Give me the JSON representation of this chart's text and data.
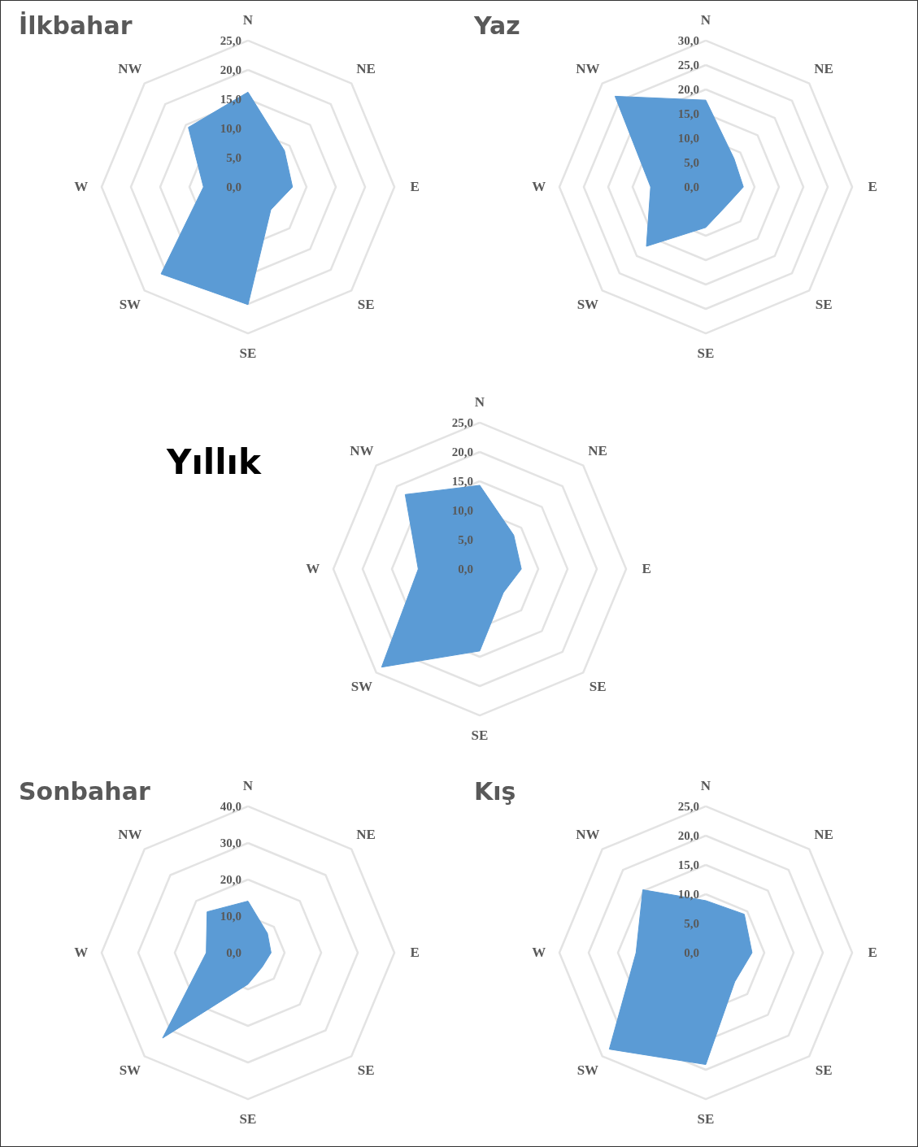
{
  "chart_data": [
    {
      "type": "radar",
      "title": "İlkbahar",
      "categories": [
        "N",
        "NE",
        "E",
        "SE",
        "SE",
        "SW",
        "W",
        "NW"
      ],
      "grid": true,
      "series": [
        {
          "color": "#5b9bd5",
          "values": [
            16.2,
            8.8,
            7.6,
            5.5,
            20.1,
            21.0,
            7.6,
            14.4
          ]
        }
      ],
      "ylim": [
        0,
        25
      ],
      "yticks": [
        {
          "value": 0,
          "label": "0,0"
        },
        {
          "value": 5,
          "label": "5,0"
        },
        {
          "value": 10,
          "label": "10,0"
        },
        {
          "value": 15,
          "label": "15,0"
        },
        {
          "value": 20,
          "label": "20,0"
        },
        {
          "value": 25,
          "label": "25,0"
        }
      ]
    },
    {
      "type": "radar",
      "title": "Yaz",
      "categories": [
        "N",
        "NE",
        "E",
        "SE",
        "SE",
        "SW",
        "W",
        "NW"
      ],
      "grid": true,
      "series": [
        {
          "color": "#5b9bd5",
          "values": [
            17.8,
            8.2,
            7.7,
            5.7,
            8.3,
            17.2,
            11.3,
            26.3
          ]
        }
      ],
      "ylim": [
        0,
        30
      ],
      "yticks": [
        {
          "value": 0,
          "label": "0,0"
        },
        {
          "value": 5,
          "label": "5,0"
        },
        {
          "value": 10,
          "label": "10,0"
        },
        {
          "value": 15,
          "label": "15,0"
        },
        {
          "value": 20,
          "label": "20,0"
        },
        {
          "value": 25,
          "label": "25,0"
        },
        {
          "value": 30,
          "label": "30,0"
        }
      ]
    },
    {
      "type": "radar",
      "title": "Yıllık",
      "categories": [
        "N",
        "NE",
        "E",
        "SE",
        "SE",
        "SW",
        "W",
        "NW"
      ],
      "grid": true,
      "series": [
        {
          "color": "#5b9bd5",
          "values": [
            14.3,
            8.2,
            7.1,
            5.7,
            14.0,
            23.7,
            10.5,
            18.0
          ]
        }
      ],
      "ylim": [
        0,
        25
      ],
      "yticks": [
        {
          "value": 0,
          "label": "0,0"
        },
        {
          "value": 5,
          "label": "5,0"
        },
        {
          "value": 10,
          "label": "10,0"
        },
        {
          "value": 15,
          "label": "15,0"
        },
        {
          "value": 20,
          "label": "20,0"
        },
        {
          "value": 25,
          "label": "25,0"
        }
      ]
    },
    {
      "type": "radar",
      "title": "Sonbahar",
      "categories": [
        "N",
        "NE",
        "E",
        "SE",
        "SE",
        "SW",
        "W",
        "NW"
      ],
      "grid": true,
      "series": [
        {
          "color": "#5b9bd5",
          "values": [
            14.1,
            7.5,
            6.3,
            5.5,
            8.6,
            33.0,
            11.4,
            15.8
          ]
        }
      ],
      "ylim": [
        0,
        40
      ],
      "yticks": [
        {
          "value": 0,
          "label": "0,0"
        },
        {
          "value": 10,
          "label": "10,0"
        },
        {
          "value": 20,
          "label": "20,0"
        },
        {
          "value": 30,
          "label": "30,0"
        },
        {
          "value": 40,
          "label": "40,0"
        }
      ]
    },
    {
      "type": "radar",
      "title": "Kış",
      "categories": [
        "N",
        "NE",
        "E",
        "SE",
        "SE",
        "SW",
        "W",
        "NW"
      ],
      "grid": true,
      "series": [
        {
          "color": "#5b9bd5",
          "values": [
            8.9,
            9.3,
            7.9,
            7.0,
            19.1,
            23.3,
            11.9,
            15.2
          ]
        }
      ],
      "ylim": [
        0,
        25
      ],
      "yticks": [
        {
          "value": 0,
          "label": "0,0"
        },
        {
          "value": 5,
          "label": "5,0"
        },
        {
          "value": 10,
          "label": "10,0"
        },
        {
          "value": 15,
          "label": "15,0"
        },
        {
          "value": 20,
          "label": "20,0"
        },
        {
          "value": 25,
          "label": "25,0"
        }
      ]
    }
  ]
}
